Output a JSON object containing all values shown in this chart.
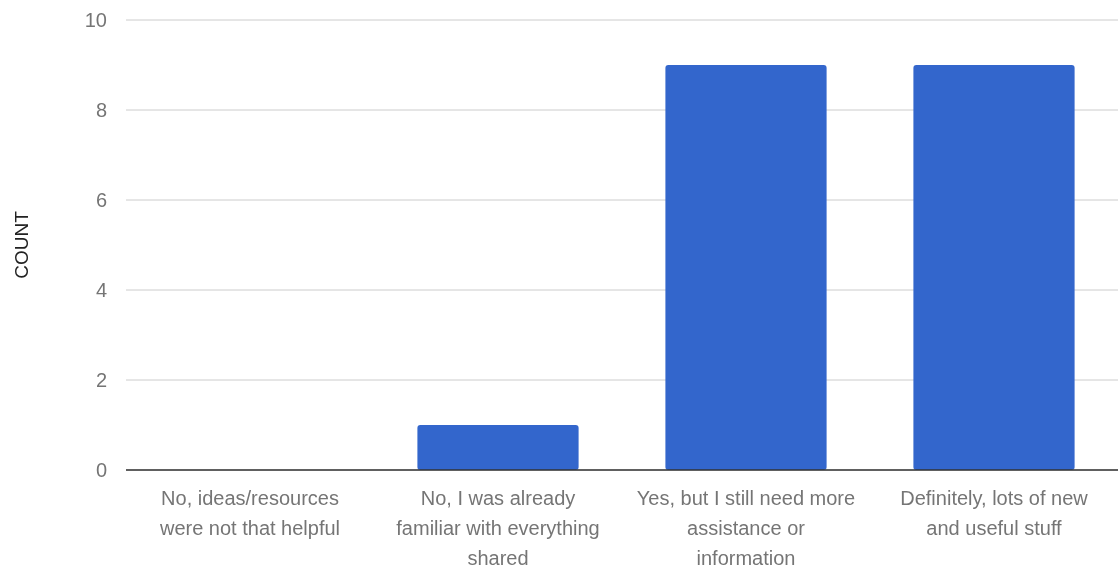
{
  "chart_data": {
    "type": "bar",
    "ylabel": "COUNT",
    "categories": [
      "No, ideas/resources were not that helpful",
      "No, I was already familiar with everything shared",
      "Yes, but I still need more assistance or information",
      "Definitely, lots of new and useful stuff"
    ],
    "values": [
      0,
      1,
      9,
      9
    ],
    "color": "#3366cc",
    "ylim": [
      0,
      10
    ],
    "yticks": [
      0,
      2,
      4,
      6,
      8,
      10
    ],
    "grid": "y"
  }
}
